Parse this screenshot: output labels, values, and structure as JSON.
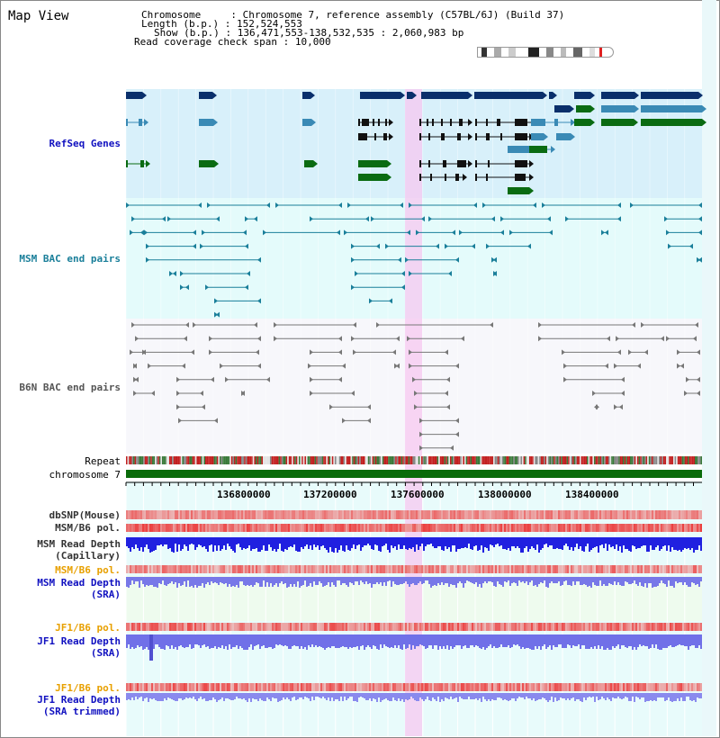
{
  "view": {
    "title": "Map View",
    "info": {
      "chromosome_label": "Chromosome",
      "chromosome_value": "Chromosome 7, reference assembly (C57BL/6J) (Build 37)",
      "length_label": "Length (b.p.)",
      "length_value": "152,524,553",
      "show_label": "Show (b.p.)",
      "show_value": "136,471,553-138,532,535 : 2,060,983 bp",
      "coverage_label": "Read coverage check span",
      "coverage_value": "10,000"
    }
  },
  "tracks": {
    "refseq": "RefSeq Genes",
    "msm_bac": "MSM BAC end pairs",
    "b6n_bac": "B6N BAC end pairs",
    "repeat": "Repeat",
    "chromosome": "chromosome 7",
    "dbsnp": "dbSNP(Mouse)",
    "msm_b6_pol": "MSM/B6 pol.",
    "msm_depth_cap_1": "MSM Read Depth",
    "msm_depth_cap_2": "(Capillary)",
    "msm_b6_pol_sra": "MSM/B6 pol.",
    "msm_depth_sra_1": "MSM Read Depth",
    "msm_depth_sra_2": "(SRA)",
    "jf1_b6_pol": "JF1/B6 pol.",
    "jf1_depth_1": "JF1 Read Depth",
    "jf1_depth_2": "(SRA)",
    "jf1_b6_pol_trim": "JF1/B6 pol.",
    "jf1_depth_trim_1": "JF1 Read Depth",
    "jf1_depth_trim_2": "(SRA trimmed)"
  },
  "axis": {
    "ticks": [
      "136800000",
      "137200000",
      "137600000",
      "138000000",
      "138400000"
    ]
  },
  "colors": {
    "refseq_bg": "#d8f0fa",
    "msm_bg": "#e4fbfb",
    "b6n_bg": "#f6f6fa",
    "highlight": "#f7c8f0",
    "gene_dark": "#0a2f6b",
    "gene_mid": "#3a8ab5",
    "gene_green": "#0a6b12",
    "msm_bac": "#1a7f9a",
    "b6n_bac": "#777777",
    "chromosome": "#0a6b0a",
    "refseq_label": "#1010c0",
    "msm_label": "#1a7f9a",
    "b6n_label": "#555555",
    "orange_label": "#e8a000",
    "blue_label": "#1010c0"
  }
}
